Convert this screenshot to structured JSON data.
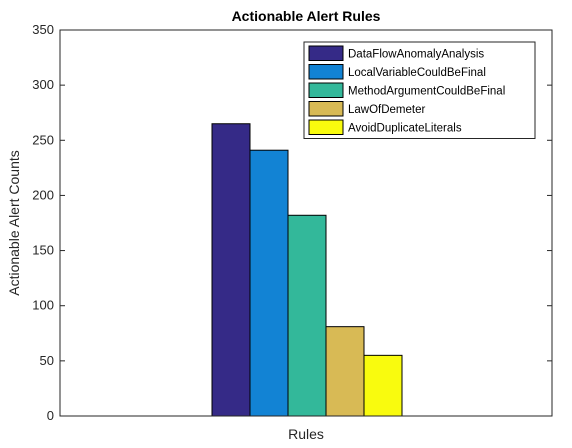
{
  "chart_data": {
    "type": "bar",
    "title": "Actionable Alert Rules",
    "xlabel": "Rules",
    "ylabel": "Actionable Alert Counts",
    "ylim": [
      0,
      350
    ],
    "yticks": [
      0,
      50,
      100,
      150,
      200,
      250,
      300,
      350
    ],
    "grid": false,
    "legend_position": "top-right",
    "series": [
      {
        "name": "DataFlowAnomalyAnalysis",
        "value": 265,
        "color": "#352a87"
      },
      {
        "name": "LocalVariableCouldBeFinal",
        "value": 241,
        "color": "#1283d4"
      },
      {
        "name": "MethodArgumentCouldBeFinal",
        "value": 182,
        "color": "#33b89a"
      },
      {
        "name": "LawOfDemeter",
        "value": 81,
        "color": "#d8ba55"
      },
      {
        "name": "AvoidDuplicateLiterals",
        "value": 55,
        "color": "#f9fb0e"
      }
    ]
  }
}
